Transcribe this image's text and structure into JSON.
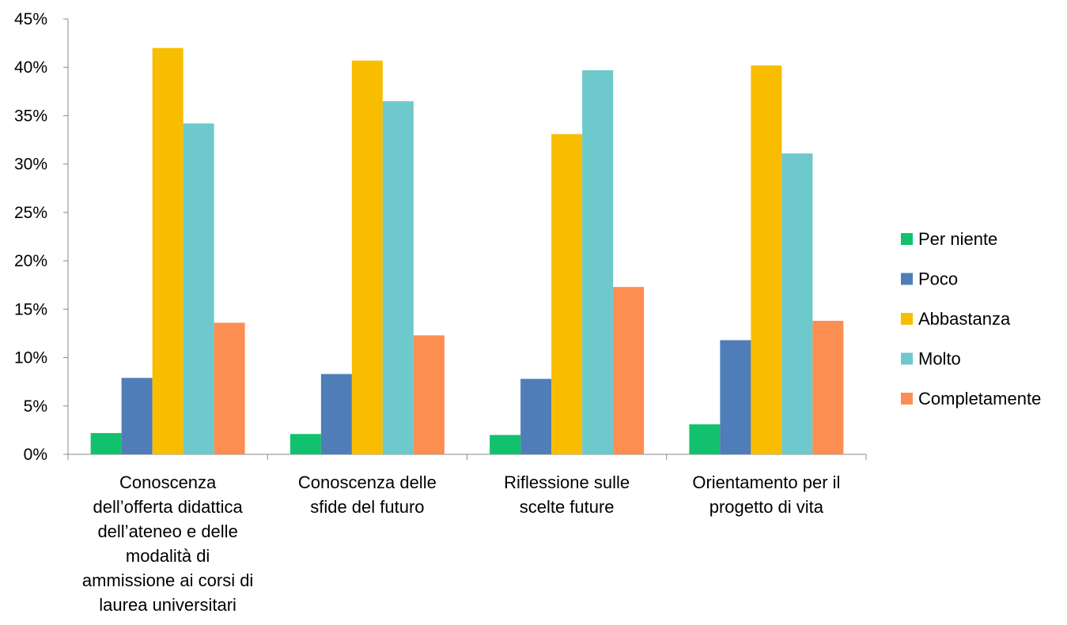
{
  "chart_data": {
    "type": "bar",
    "title": "",
    "xlabel": "",
    "ylabel": "",
    "ylim": [
      0,
      45
    ],
    "y_ticks": [
      "0%",
      "5%",
      "10%",
      "15%",
      "20%",
      "25%",
      "30%",
      "35%",
      "40%",
      "45%"
    ],
    "grid": false,
    "legend_position": "right",
    "categories": [
      [
        "Conoscenza",
        "dell’offerta didattica",
        "dell’ateneo e delle",
        "modalità di",
        "ammissione ai corsi di",
        "laurea universitari"
      ],
      [
        "Conoscenza delle",
        "sfide del futuro"
      ],
      [
        "Riflessione sulle",
        "scelte future"
      ],
      [
        "Orientamento per il",
        "progetto di vita"
      ]
    ],
    "series": [
      {
        "name": "Per niente",
        "color": "#12c16d",
        "values": [
          2.2,
          2.1,
          2.0,
          3.1
        ]
      },
      {
        "name": "Poco",
        "color": "#4f7db7",
        "values": [
          7.9,
          8.3,
          7.8,
          11.8
        ]
      },
      {
        "name": "Abbastanza",
        "color": "#f8bd00",
        "values": [
          42.0,
          40.7,
          33.1,
          40.2
        ]
      },
      {
        "name": "Molto",
        "color": "#6ec9cc",
        "values": [
          34.2,
          36.5,
          39.7,
          31.1
        ]
      },
      {
        "name": "Completamente",
        "color": "#fd8e51",
        "values": [
          13.6,
          12.3,
          17.3,
          13.8
        ]
      }
    ]
  }
}
